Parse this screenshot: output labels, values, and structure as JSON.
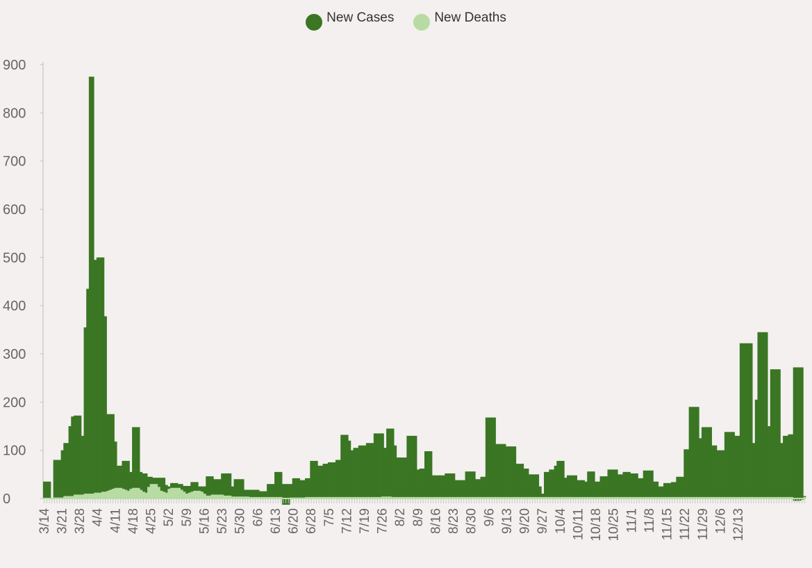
{
  "colors": {
    "cases": "#3a7623",
    "deaths": "#b8dba4",
    "axis": "#666666",
    "background": "#f3f0ef"
  },
  "legend": [
    {
      "label": "New Cases",
      "color": "#3a7623"
    },
    {
      "label": "New Deaths",
      "color": "#b8dba4"
    }
  ],
  "chart_data": {
    "type": "bar",
    "title": "",
    "xlabel": "",
    "ylabel": "",
    "ylim": [
      -15,
      900
    ],
    "yticks": [
      0,
      100,
      200,
      300,
      400,
      500,
      600,
      700,
      800,
      900
    ],
    "x_start": "3/14",
    "x_tick_labels": [
      "3/14",
      "3/21",
      "3/28",
      "4/4",
      "4/11",
      "4/18",
      "4/25",
      "5/2",
      "5/9",
      "5/16",
      "5/23",
      "5/30",
      "6/6",
      "6/13",
      "6/20",
      "6/28",
      "7/5",
      "7/12",
      "7/19",
      "7/26",
      "8/2",
      "8/9",
      "8/16",
      "8/23",
      "8/30",
      "9/6",
      "9/13",
      "9/20",
      "9/27",
      "10/4",
      "10/11",
      "10/18",
      "10/25",
      "11/1",
      "11/8",
      "11/15",
      "11/22",
      "11/29",
      "12/6",
      "12/13"
    ],
    "legend_position": "top-center",
    "grid": false,
    "series": [
      {
        "name": "New Cases",
        "values": [
          35,
          35,
          35,
          0,
          80,
          80,
          80,
          100,
          115,
          115,
          150,
          170,
          172,
          172,
          172,
          130,
          355,
          435,
          875,
          875,
          495,
          500,
          500,
          500,
          378,
          175,
          175,
          175,
          118,
          68,
          68,
          78,
          78,
          78,
          55,
          148,
          148,
          148,
          55,
          52,
          52,
          45,
          45,
          43,
          43,
          43,
          43,
          43,
          28,
          25,
          32,
          32,
          32,
          30,
          30,
          26,
          26,
          26,
          34,
          34,
          34,
          25,
          25,
          25,
          46,
          46,
          46,
          40,
          40,
          40,
          52,
          52,
          52,
          52,
          25,
          40,
          40,
          40,
          40,
          18,
          18,
          18,
          18,
          18,
          18,
          15,
          15,
          15,
          30,
          30,
          30,
          55,
          55,
          55,
          30,
          30,
          30,
          30,
          42,
          42,
          42,
          38,
          38,
          42,
          42,
          78,
          78,
          78,
          68,
          68,
          72,
          72,
          75,
          75,
          75,
          80,
          80,
          132,
          132,
          132,
          120,
          100,
          105,
          105,
          110,
          110,
          110,
          115,
          115,
          115,
          135,
          135,
          135,
          135,
          105,
          145,
          145,
          145,
          110,
          85,
          85,
          85,
          85,
          130,
          130,
          130,
          130,
          60,
          62,
          62,
          98,
          98,
          98,
          48,
          48,
          48,
          48,
          48,
          52,
          52,
          52,
          52,
          38,
          38,
          38,
          38,
          56,
          56,
          56,
          56,
          40,
          40,
          45,
          45,
          168,
          168,
          168,
          168,
          113,
          113,
          113,
          113,
          108,
          108,
          108,
          108,
          72,
          72,
          72,
          62,
          62,
          50,
          50,
          50,
          50,
          25,
          10,
          55,
          55,
          60,
          60,
          68,
          78,
          78,
          78,
          43,
          48,
          48,
          48,
          48,
          38,
          38,
          38,
          35,
          56,
          56,
          56,
          35,
          35,
          46,
          46,
          46,
          60,
          60,
          60,
          60,
          50,
          50,
          55,
          55,
          55,
          52,
          52,
          52,
          42,
          42,
          58,
          58,
          58,
          58,
          35,
          35,
          25,
          25,
          32,
          32,
          32,
          34,
          34,
          45,
          45,
          45,
          102,
          102,
          190,
          190,
          190,
          190,
          125,
          148,
          148,
          148,
          148,
          110,
          110,
          100,
          100,
          100,
          138,
          138,
          138,
          138,
          130,
          130,
          322,
          322,
          322,
          322,
          322,
          115,
          205,
          345,
          345,
          345,
          345,
          150,
          268,
          268,
          268,
          268,
          115,
          130,
          130,
          133,
          133,
          272,
          272,
          272,
          272,
          5
        ],
        "color": "#3a7623"
      },
      {
        "name": "New Deaths",
        "values": [
          0,
          0,
          0,
          0,
          2,
          2,
          2,
          2,
          5,
          5,
          5,
          5,
          8,
          8,
          8,
          8,
          10,
          10,
          10,
          10,
          12,
          12,
          12,
          14,
          14,
          16,
          18,
          20,
          22,
          22,
          22,
          20,
          18,
          16,
          20,
          22,
          22,
          22,
          18,
          14,
          12,
          24,
          30,
          30,
          30,
          24,
          16,
          14,
          12,
          20,
          22,
          22,
          22,
          22,
          18,
          14,
          10,
          12,
          14,
          16,
          16,
          16,
          14,
          10,
          6,
          6,
          8,
          8,
          8,
          8,
          8,
          6,
          6,
          6,
          4,
          4,
          4,
          4,
          4,
          4,
          4,
          3,
          3,
          3,
          3,
          3,
          3,
          3,
          3,
          3,
          3,
          3,
          3,
          3,
          -13,
          -13,
          -13,
          2,
          2,
          2,
          2,
          2,
          2,
          3,
          3,
          3,
          3,
          3,
          3,
          3,
          3,
          3,
          3,
          3,
          3,
          3,
          3,
          3,
          3,
          3,
          3,
          3,
          3,
          3,
          3,
          3,
          3,
          3,
          3,
          3,
          3,
          3,
          3,
          4,
          4,
          4,
          4,
          3,
          3,
          3,
          3,
          3,
          3,
          3,
          3,
          3,
          3,
          3,
          3,
          3,
          3,
          3,
          3,
          3,
          3,
          3,
          3,
          3,
          3,
          3,
          3,
          3,
          3,
          3,
          3,
          3,
          3,
          3,
          3,
          3,
          3,
          3,
          3,
          3,
          3,
          3,
          3,
          3,
          3,
          3,
          3,
          3,
          3,
          3,
          3,
          3,
          3,
          3,
          3,
          3,
          3,
          3,
          3,
          3,
          3,
          3,
          3,
          3,
          3,
          3,
          3,
          3,
          3,
          3,
          3,
          3,
          3,
          3,
          3,
          3,
          3,
          3,
          3,
          3,
          3,
          3,
          3,
          3,
          3,
          3,
          3,
          3,
          3,
          3,
          3,
          3,
          3,
          3,
          3,
          3,
          3,
          3,
          3,
          3,
          3,
          3,
          3,
          3,
          3,
          3,
          3,
          3,
          3,
          3,
          3,
          3,
          3,
          3,
          3,
          3,
          3,
          3,
          3,
          3,
          3,
          3,
          3,
          3,
          3,
          3,
          3,
          3,
          3,
          3,
          3,
          3,
          3,
          3,
          3,
          3,
          3,
          3,
          3,
          3,
          3,
          3,
          3,
          3,
          3,
          3,
          3,
          3,
          3,
          3,
          3,
          3,
          3,
          3,
          3,
          3,
          3,
          3,
          3,
          3,
          3,
          -5,
          -5,
          -5,
          -3,
          3,
          3,
          3,
          3,
          3,
          -3,
          -3,
          3,
          3,
          3,
          3,
          3,
          3,
          3,
          3,
          3,
          3,
          3,
          3,
          3,
          3,
          -3
        ],
        "color": "#b8dba4"
      }
    ]
  }
}
